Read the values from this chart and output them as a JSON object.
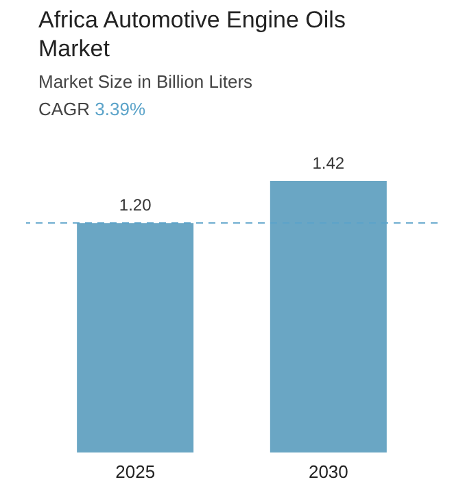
{
  "chart_data": {
    "type": "bar",
    "title": "Africa Automotive Engine Oils Market",
    "subtitle": "Market Size in Billion Liters",
    "annotations": [
      "CAGR 3.39%"
    ],
    "categories": [
      "2025",
      "2030"
    ],
    "values": [
      1.2,
      1.42
    ],
    "value_labels": [
      "1.20",
      "1.42"
    ],
    "color": "#6aa6c4",
    "ref_lines": [
      {
        "axis": "y",
        "value": 1.2,
        "color": "#5ba3c9",
        "line_style": "dashed"
      }
    ],
    "grid": false,
    "tick_labels": "x"
  }
}
